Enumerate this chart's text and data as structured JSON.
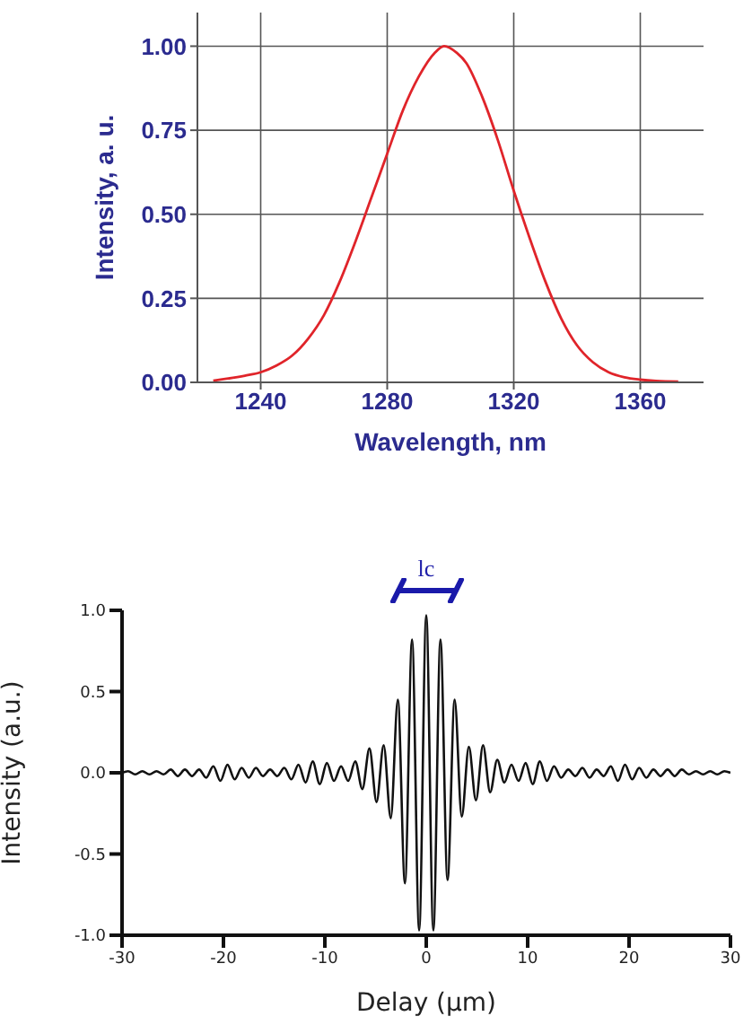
{
  "chart_data": [
    {
      "type": "line",
      "xlabel": "Wavelength, nm",
      "ylabel": "Intensity, a. u.",
      "color": "#e0242a",
      "grid": true,
      "xlim": [
        1220,
        1380
      ],
      "ylim": [
        0,
        1.1
      ],
      "xticks": [
        1240,
        1280,
        1320,
        1360
      ],
      "yticks": [
        {
          "value": 0,
          "label": "0.00"
        },
        {
          "value": 0.25,
          "label": "0.25"
        },
        {
          "value": 0.5,
          "label": "0.50"
        },
        {
          "value": 0.75,
          "label": "0.75"
        },
        {
          "value": 1,
          "label": "1.00"
        }
      ],
      "x": [
        1225,
        1235,
        1240,
        1245,
        1250,
        1255,
        1260,
        1265,
        1270,
        1275,
        1280,
        1285,
        1290,
        1295,
        1298,
        1302,
        1305,
        1310,
        1315,
        1320,
        1325,
        1330,
        1335,
        1340,
        1345,
        1350,
        1355,
        1360,
        1365,
        1372
      ],
      "values": [
        0.005,
        0.02,
        0.03,
        0.05,
        0.08,
        0.13,
        0.2,
        0.3,
        0.42,
        0.55,
        0.68,
        0.81,
        0.91,
        0.98,
        1.0,
        0.98,
        0.95,
        0.85,
        0.72,
        0.57,
        0.43,
        0.3,
        0.19,
        0.11,
        0.06,
        0.03,
        0.015,
        0.008,
        0.004,
        0.002
      ]
    },
    {
      "type": "line",
      "xlabel": "Delay (μm)",
      "ylabel": "Intensity (a.u.)",
      "color": "#111111",
      "xlim": [
        -30,
        30
      ],
      "ylim": [
        -1,
        1
      ],
      "xticks": [
        -30,
        -20,
        -10,
        0,
        10,
        20,
        30
      ],
      "yticks": [
        {
          "value": -1,
          "label": "-1.0"
        },
        {
          "value": -0.5,
          "label": "-0.5"
        },
        {
          "value": 0,
          "label": "0.0"
        },
        {
          "value": 0.5,
          "label": "0.5"
        },
        {
          "value": 1,
          "label": "1.0"
        }
      ],
      "annotations": [
        "lc"
      ],
      "x": [
        -30,
        -29.4,
        -28.7,
        -28,
        -27.3,
        -26.6,
        -25.9,
        -25.2,
        -24.5,
        -23.8,
        -23.1,
        -22.4,
        -21.7,
        -21,
        -20.3,
        -19.6,
        -18.9,
        -18.2,
        -17.5,
        -16.8,
        -16.1,
        -15.4,
        -14.7,
        -14,
        -13.3,
        -12.6,
        -11.9,
        -11.2,
        -10.5,
        -9.8,
        -9.1,
        -8.4,
        -7.7,
        -7,
        -6.3,
        -5.6,
        -4.9,
        -4.2,
        -3.5,
        -2.8,
        -2.1,
        -1.4,
        -0.7,
        0,
        0.7,
        1.4,
        2.1,
        2.8,
        3.5,
        4.2,
        4.9,
        5.6,
        6.3,
        7,
        7.7,
        8.4,
        9.1,
        9.8,
        10.5,
        11.2,
        11.9,
        12.6,
        13.3,
        14,
        14.7,
        15.4,
        16.1,
        16.8,
        17.5,
        18.2,
        18.9,
        19.6,
        20.3,
        21,
        21.7,
        22.4,
        23.1,
        23.8,
        24.5,
        25.2,
        25.9,
        26.6,
        27.3,
        28,
        28.7,
        29.4,
        30
      ],
      "values": [
        0,
        0.01,
        -0.01,
        0.01,
        -0.01,
        0.01,
        -0.01,
        0.02,
        -0.02,
        0.02,
        -0.02,
        0.02,
        -0.03,
        0.04,
        -0.05,
        0.05,
        -0.04,
        0.03,
        -0.03,
        0.03,
        -0.02,
        0.02,
        -0.02,
        0.03,
        -0.04,
        0.05,
        -0.06,
        0.07,
        -0.07,
        0.06,
        -0.05,
        0.04,
        -0.05,
        0.07,
        -0.1,
        0.15,
        -0.18,
        0.17,
        -0.28,
        0.45,
        -0.68,
        0.82,
        -0.97,
        0.97,
        -0.97,
        0.82,
        -0.66,
        0.45,
        -0.27,
        0.16,
        -0.17,
        0.17,
        -0.12,
        0.08,
        -0.06,
        0.05,
        -0.05,
        0.06,
        -0.07,
        0.07,
        -0.05,
        0.04,
        -0.03,
        0.02,
        -0.02,
        0.03,
        -0.03,
        0.02,
        -0.02,
        0.04,
        -0.05,
        0.05,
        -0.04,
        0.03,
        -0.03,
        0.02,
        -0.02,
        0.02,
        -0.02,
        0.02,
        -0.01,
        0.01,
        -0.01,
        0.01,
        -0.01,
        0.01,
        0
      ]
    }
  ]
}
